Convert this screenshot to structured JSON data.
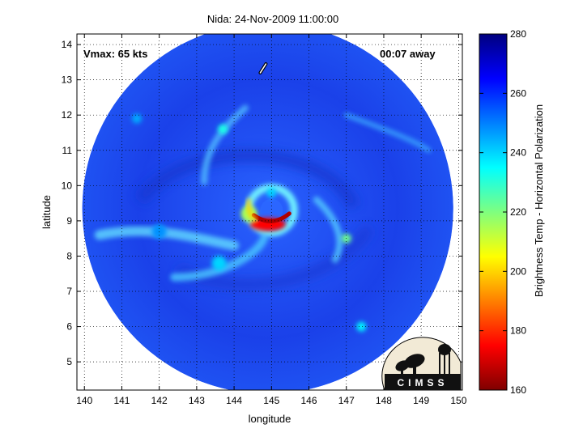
{
  "chart_data": {
    "type": "heatmap",
    "title": "Nida: 24-Nov-2009 11:00:00",
    "xlabel": "longitude",
    "ylabel": "latitude",
    "xlim": [
      139.8,
      150.1
    ],
    "ylim": [
      4.2,
      14.3
    ],
    "x_ticks": [
      140,
      141,
      142,
      143,
      144,
      145,
      146,
      147,
      148,
      149,
      150
    ],
    "y_ticks": [
      5,
      6,
      7,
      8,
      9,
      10,
      11,
      12,
      13,
      14
    ],
    "grid": true,
    "annotations": {
      "vmax": "Vmax: 65 kts",
      "away": "00:07 away"
    },
    "storm_center": {
      "lon": 145.0,
      "lat": 9.3
    },
    "swath_center": {
      "lon": 144.9,
      "lat": 9.35
    },
    "colorbar": {
      "label": "Brightness Temp - Horizontal Polarization",
      "range": [
        160,
        280
      ],
      "ticks": [
        160,
        180,
        200,
        220,
        240,
        260,
        280
      ]
    },
    "features": [
      {
        "name": "eyewall-warm-arc",
        "lon": 144.9,
        "lat": 8.9,
        "value": 175
      },
      {
        "name": "eyewall-west",
        "lon": 144.4,
        "lat": 9.2,
        "value": 215
      },
      {
        "name": "inner-ring",
        "lon": 145.0,
        "lat": 9.8,
        "value": 240
      },
      {
        "name": "rainband-south",
        "lon": 143.6,
        "lat": 7.8,
        "value": 240
      },
      {
        "name": "rainband-west",
        "lon": 142.0,
        "lat": 8.7,
        "value": 248
      },
      {
        "name": "cell-north",
        "lon": 143.7,
        "lat": 11.6,
        "value": 232
      },
      {
        "name": "cell-east",
        "lon": 147.0,
        "lat": 8.5,
        "value": 222
      },
      {
        "name": "cell-southeast",
        "lon": 147.4,
        "lat": 6.0,
        "value": 236
      },
      {
        "name": "cell-northwest",
        "lon": 141.4,
        "lat": 11.9,
        "value": 245
      }
    ],
    "track": [
      [
        144.7,
        13.2
      ],
      [
        144.85,
        13.45
      ]
    ],
    "logo": "CIMSS"
  }
}
